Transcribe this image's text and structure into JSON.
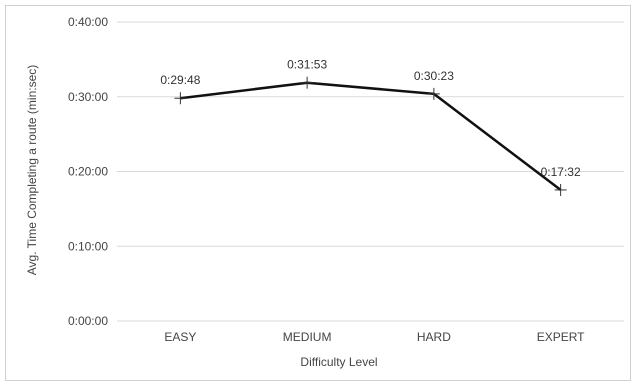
{
  "chart_data": {
    "type": "line",
    "categories": [
      "EASY",
      "MEDIUM",
      "HARD",
      "EXPERT"
    ],
    "series": [
      {
        "values": [
          29.8,
          31.883,
          30.383,
          17.533
        ],
        "labels": [
          "0:29:48",
          "0:31:53",
          "0:30:23",
          "0:17:32"
        ]
      }
    ],
    "xlabel": "Difficulty Level",
    "ylabel": "Avg. Time Completing a route (min:sec)",
    "yticks": [
      {
        "value": 0,
        "label": "0:00:00"
      },
      {
        "value": 10,
        "label": "0:10:00"
      },
      {
        "value": 20,
        "label": "0:20:00"
      },
      {
        "value": 30,
        "label": "0:30:00"
      },
      {
        "value": 40,
        "label": "0:40:00"
      }
    ],
    "ylim": [
      0,
      40
    ],
    "grid": true,
    "line_color": "#111111",
    "grid_color": "#d9d9d9"
  }
}
